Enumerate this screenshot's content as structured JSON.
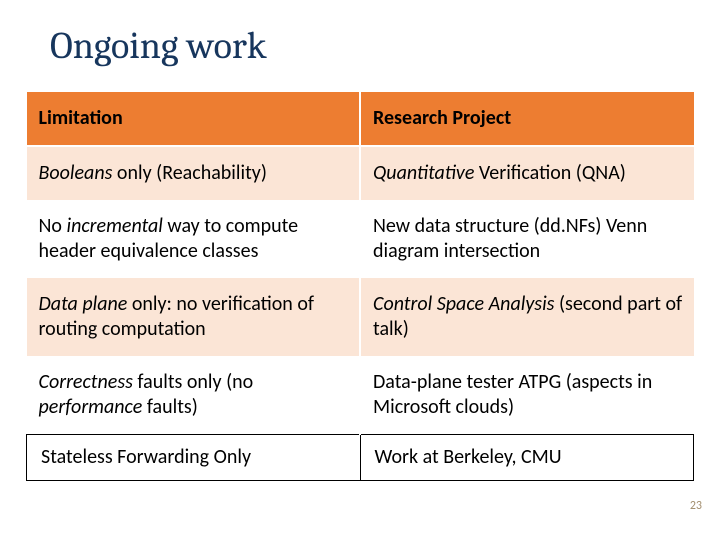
{
  "title": "Ongoing work",
  "header": {
    "left": "Limitation",
    "right": "Research Project"
  },
  "rows": [
    {
      "left_html": "<span class='it'>Booleans</span> only (Reachability)",
      "right_html": "<span class='it'>Quantitative</span> Verification (QNA)",
      "shade": "light"
    },
    {
      "left_html": "No <span class='it'>incremental</span> way to compute header equivalence classes",
      "right_html": "New data structure (dd.NFs) Venn diagram intersection",
      "shade": "white"
    },
    {
      "left_html": "<span class='it'>Data plane</span> only: no verification of routing computation",
      "right_html": "<span class='it'>Control Space Analysis </span>(second part of talk)",
      "shade": "light"
    },
    {
      "left_html": "<span class='it'>Correctness</span> faults only (no <span class='it'>performance</span> faults)",
      "right_html": "Data-plane tester  ATPG (aspects in  Microsoft  clouds)",
      "shade": "white"
    }
  ],
  "last": {
    "left": " Stateless Forwarding Only",
    "right": " Work at Berkeley, CMU"
  },
  "pageNumber": "23",
  "colors": {
    "header_bg": "#ed7d31",
    "row_light": "#fbe5d6",
    "title_color": "#17365d",
    "pagenum_color": "#a38f6f",
    "row_white": "#ffffff"
  }
}
